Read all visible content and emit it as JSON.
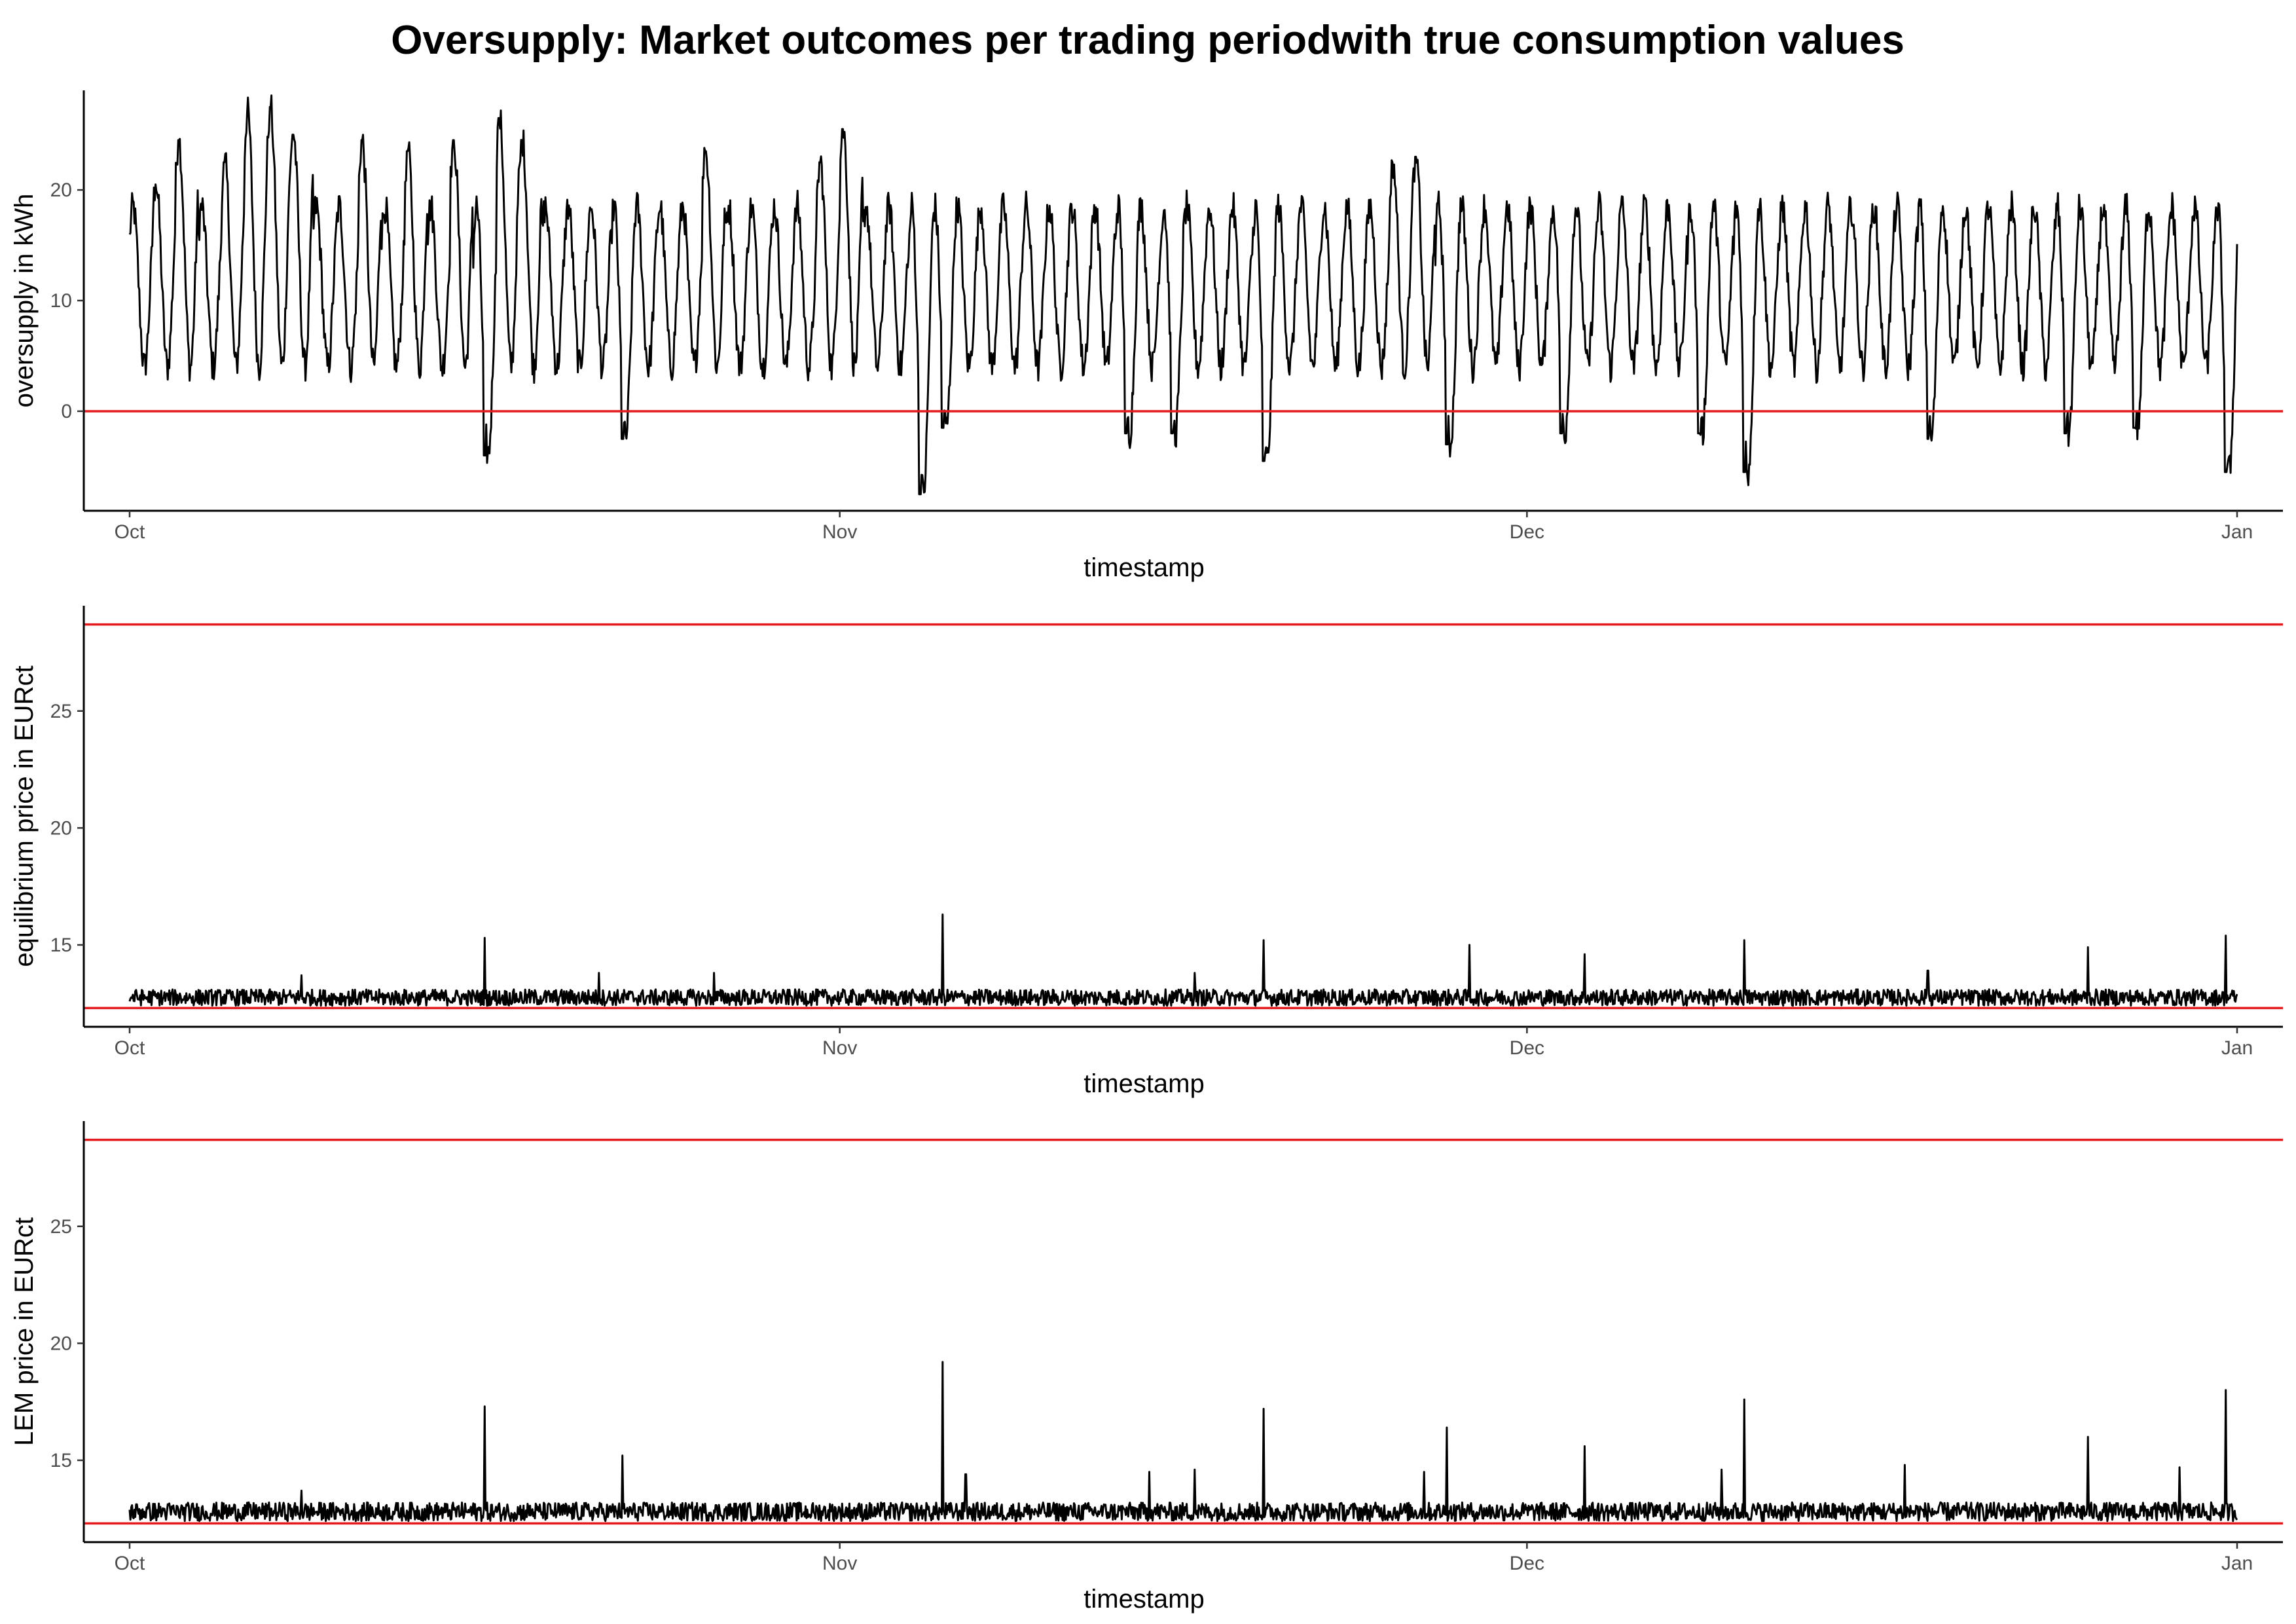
{
  "chart_data": [
    {
      "type": "line",
      "title": "Oversupply: Market outcomes per trading periodwith true consumption values",
      "xlabel": "timestamp",
      "ylabel": "oversupply in kWh",
      "x_ticks": [
        "Oct",
        "Nov",
        "Dec",
        "Jan"
      ],
      "y_ticks": [
        0,
        10,
        20
      ],
      "xlim": [
        "2020-09-29",
        "2021-01-03"
      ],
      "ylim": [
        -9,
        29
      ],
      "grid": false,
      "reference_lines": [
        {
          "y": 0,
          "color": "#e41a1c"
        }
      ],
      "series_color": "#000000",
      "series": {
        "start": "2020-10-01",
        "end": "2021-01-01",
        "period_days": 1,
        "base_min": 4,
        "base_max": 18.5,
        "spikes_high": [
          {
            "x": "2020-10-02",
            "y": 20.5
          },
          {
            "x": "2020-10-03",
            "y": 24.5
          },
          {
            "x": "2020-10-05",
            "y": 22.5
          },
          {
            "x": "2020-10-06",
            "y": 27
          },
          {
            "x": "2020-10-07",
            "y": 27.5
          },
          {
            "x": "2020-10-08",
            "y": 25
          },
          {
            "x": "2020-10-11",
            "y": 24.5
          },
          {
            "x": "2020-10-13",
            "y": 23.5
          },
          {
            "x": "2020-10-15",
            "y": 24.5
          },
          {
            "x": "2020-10-17",
            "y": 26.5
          },
          {
            "x": "2020-10-18",
            "y": 24.5
          },
          {
            "x": "2020-10-26",
            "y": 23.5
          },
          {
            "x": "2020-10-31",
            "y": 22.5
          },
          {
            "x": "2020-11-01",
            "y": 25.5
          },
          {
            "x": "2020-11-25",
            "y": 22.5
          },
          {
            "x": "2020-11-26",
            "y": 23
          }
        ],
        "spikes_low": [
          {
            "x": "2020-10-16",
            "y": -4
          },
          {
            "x": "2020-10-22",
            "y": -2.5
          },
          {
            "x": "2020-11-04",
            "y": -7.5
          },
          {
            "x": "2020-11-05",
            "y": -1.5
          },
          {
            "x": "2020-11-13",
            "y": -2
          },
          {
            "x": "2020-11-15",
            "y": -2
          },
          {
            "x": "2020-11-19",
            "y": -4.5
          },
          {
            "x": "2020-11-27",
            "y": -3
          },
          {
            "x": "2020-12-02",
            "y": -2
          },
          {
            "x": "2020-12-08",
            "y": -2
          },
          {
            "x": "2020-12-10",
            "y": -5.5
          },
          {
            "x": "2020-12-18",
            "y": -2.5
          },
          {
            "x": "2020-12-24",
            "y": -2
          },
          {
            "x": "2020-12-27",
            "y": -1.5
          },
          {
            "x": "2020-12-31",
            "y": -5.5
          }
        ]
      }
    },
    {
      "type": "line",
      "xlabel": "timestamp",
      "ylabel": "equilibrium price in EURct",
      "x_ticks": [
        "Oct",
        "Nov",
        "Dec",
        "Jan"
      ],
      "y_ticks": [
        15,
        20,
        25
      ],
      "xlim": [
        "2020-09-29",
        "2021-01-03"
      ],
      "ylim": [
        11.5,
        29.5
      ],
      "grid": false,
      "reference_lines": [
        {
          "y": 28.7,
          "color": "#e41a1c"
        },
        {
          "y": 12.3,
          "color": "#e41a1c"
        }
      ],
      "series_color": "#000000",
      "series": {
        "start": "2020-10-01",
        "end": "2021-01-01",
        "base": 12.4,
        "noise_max": 13.1,
        "spikes": [
          {
            "x": "2020-10-16",
            "y": 15.3
          },
          {
            "x": "2020-11-05",
            "y": 16.3
          },
          {
            "x": "2020-11-19",
            "y": 15.2
          },
          {
            "x": "2020-11-28",
            "y": 15
          },
          {
            "x": "2020-12-03",
            "y": 14.6
          },
          {
            "x": "2020-12-10",
            "y": 15.2
          },
          {
            "x": "2020-12-18",
            "y": 13.9
          },
          {
            "x": "2020-12-25",
            "y": 14.9
          },
          {
            "x": "2020-12-31",
            "y": 15.4
          },
          {
            "x": "2020-10-08",
            "y": 13.7
          },
          {
            "x": "2020-10-21",
            "y": 13.8
          },
          {
            "x": "2020-10-26",
            "y": 13.8
          },
          {
            "x": "2020-11-16",
            "y": 13.8
          }
        ]
      }
    },
    {
      "type": "line",
      "xlabel": "timestamp",
      "ylabel": "LEM price in EURct",
      "x_ticks": [
        "Oct",
        "Nov",
        "Dec",
        "Jan"
      ],
      "y_ticks": [
        15,
        20,
        25
      ],
      "xlim": [
        "2020-09-29",
        "2021-01-03"
      ],
      "ylim": [
        11.5,
        29.5
      ],
      "grid": false,
      "reference_lines": [
        {
          "y": 28.7,
          "color": "#e41a1c"
        },
        {
          "y": 12.3,
          "color": "#e41a1c"
        }
      ],
      "series_color": "#000000",
      "series": {
        "start": "2020-10-01",
        "end": "2021-01-01",
        "base": 12.4,
        "noise_max": 13.2,
        "spikes": [
          {
            "x": "2020-10-16",
            "y": 17.3
          },
          {
            "x": "2020-10-22",
            "y": 15.2
          },
          {
            "x": "2020-11-05",
            "y": 19.2
          },
          {
            "x": "2020-11-06",
            "y": 14.4
          },
          {
            "x": "2020-11-14",
            "y": 14.5
          },
          {
            "x": "2020-11-16",
            "y": 14.6
          },
          {
            "x": "2020-11-19",
            "y": 17.2
          },
          {
            "x": "2020-11-27",
            "y": 16.4
          },
          {
            "x": "2020-12-03",
            "y": 15.6
          },
          {
            "x": "2020-12-09",
            "y": 14.6
          },
          {
            "x": "2020-12-10",
            "y": 17.6
          },
          {
            "x": "2020-12-17",
            "y": 14.8
          },
          {
            "x": "2020-12-25",
            "y": 16
          },
          {
            "x": "2020-12-29",
            "y": 14.7
          },
          {
            "x": "2020-12-31",
            "y": 18
          },
          {
            "x": "2020-11-26",
            "y": 14.5
          },
          {
            "x": "2020-10-08",
            "y": 13.7
          }
        ]
      }
    }
  ]
}
